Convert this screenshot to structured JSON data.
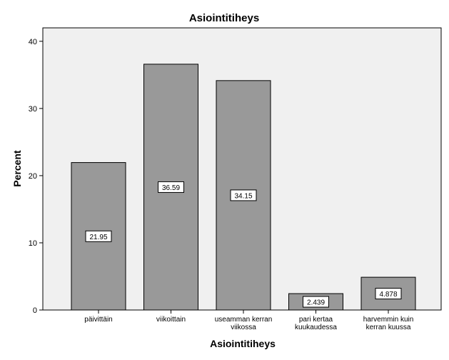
{
  "chart_data": {
    "type": "bar",
    "title": "Asiointitiheys",
    "xlabel": "Asiointitiheys",
    "ylabel": "Percent",
    "categories": [
      [
        "päivittäin"
      ],
      [
        "viikoittain"
      ],
      [
        "useamman kerran",
        "viikossa"
      ],
      [
        "pari kertaa",
        "kuukaudessa"
      ],
      [
        "harvemmin kuin",
        "kerran kuussa"
      ]
    ],
    "values": [
      21.95,
      36.59,
      34.15,
      2.439,
      4.878
    ],
    "data_labels": [
      "21.95",
      "36.59",
      "34.15",
      "2.439",
      "4.878"
    ],
    "ylim": [
      0,
      42
    ],
    "yticks": [
      0,
      10,
      20,
      30,
      40
    ],
    "grid": false,
    "legend": "none",
    "colors": {
      "bar_fill": "#999999",
      "bar_stroke": "#000000",
      "plot_background": "#f0f0f0",
      "label_box": "#ffffff"
    }
  }
}
